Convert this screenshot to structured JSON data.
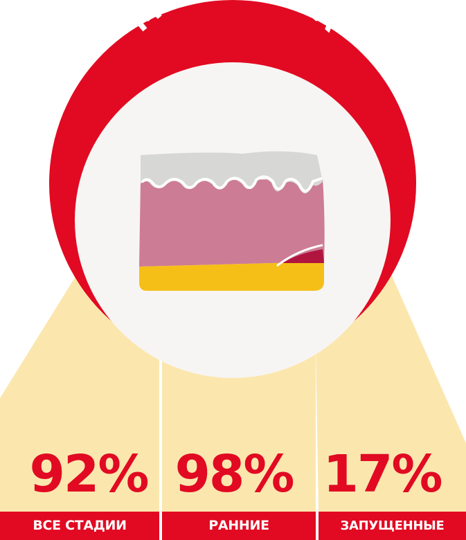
{
  "title": "МЕЛАНОМА",
  "groups": [
    {
      "percent": "92%",
      "label": "ВСЕ СТАДИИ"
    },
    {
      "percent": "98%",
      "label": "РАННИЕ"
    },
    {
      "percent": "17%",
      "label": "ЗАПУЩЕННЫЕ"
    }
  ],
  "icon": "skin-melanoma-cross-section-icon",
  "colors": {
    "ring": "#e10a22",
    "beam": "#fbe7ae",
    "circle": "#f7f5f3",
    "epidermis": "#d7d8d6",
    "dermis": "#cd7c95",
    "fat": "#f6bf18",
    "melanoma": "#b0153f",
    "label_text": "#ffffff"
  }
}
